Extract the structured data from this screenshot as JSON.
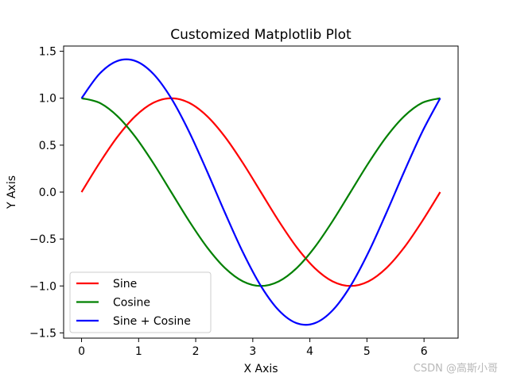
{
  "chart_data": {
    "type": "line",
    "title": "Customized Matplotlib Plot",
    "xlabel": "X Axis",
    "ylabel": "Y Axis",
    "xlim": [
      -0.314,
      6.597
    ],
    "ylim": [
      -1.556,
      1.556
    ],
    "xticks": [
      0,
      1,
      2,
      3,
      4,
      5,
      6
    ],
    "yticks": [
      -1.5,
      -1.0,
      -0.5,
      0.0,
      0.5,
      1.0,
      1.5
    ],
    "ytick_labels": [
      "−1.5",
      "−1.0",
      "−0.5",
      "0.0",
      "0.5",
      "1.0",
      "1.5"
    ],
    "grid": false,
    "legend_position": "lower-left",
    "x": [
      0,
      0.3142,
      0.6283,
      0.9425,
      1.2566,
      1.5708,
      1.885,
      2.1991,
      2.5133,
      2.8274,
      3.1416,
      3.4558,
      3.7699,
      4.0841,
      4.3982,
      4.7124,
      5.0265,
      5.3407,
      5.6549,
      5.969,
      6.2832
    ],
    "series": [
      {
        "name": "Sine",
        "color": "#ff0000",
        "values": [
          0,
          0.309,
          0.588,
          0.809,
          0.951,
          1.0,
          0.951,
          0.809,
          0.588,
          0.309,
          0,
          -0.309,
          -0.588,
          -0.809,
          -0.951,
          -1.0,
          -0.951,
          -0.809,
          -0.588,
          -0.309,
          0
        ]
      },
      {
        "name": "Cosine",
        "color": "#008000",
        "values": [
          1.0,
          0.951,
          0.809,
          0.588,
          0.309,
          0,
          -0.309,
          -0.588,
          -0.809,
          -0.951,
          -1.0,
          -0.951,
          -0.809,
          -0.588,
          -0.309,
          0,
          0.309,
          0.588,
          0.809,
          0.951,
          1.0
        ]
      },
      {
        "name": "Sine + Cosine",
        "color": "#0000ff",
        "values": [
          1.0,
          1.26,
          1.397,
          1.397,
          1.26,
          1.0,
          0.642,
          0.221,
          -0.221,
          -0.642,
          -1.0,
          -1.26,
          -1.397,
          -1.397,
          -1.26,
          -1.0,
          -0.642,
          -0.221,
          0.221,
          0.642,
          1.0
        ]
      }
    ]
  },
  "watermark": "CSDN @高斯小哥"
}
